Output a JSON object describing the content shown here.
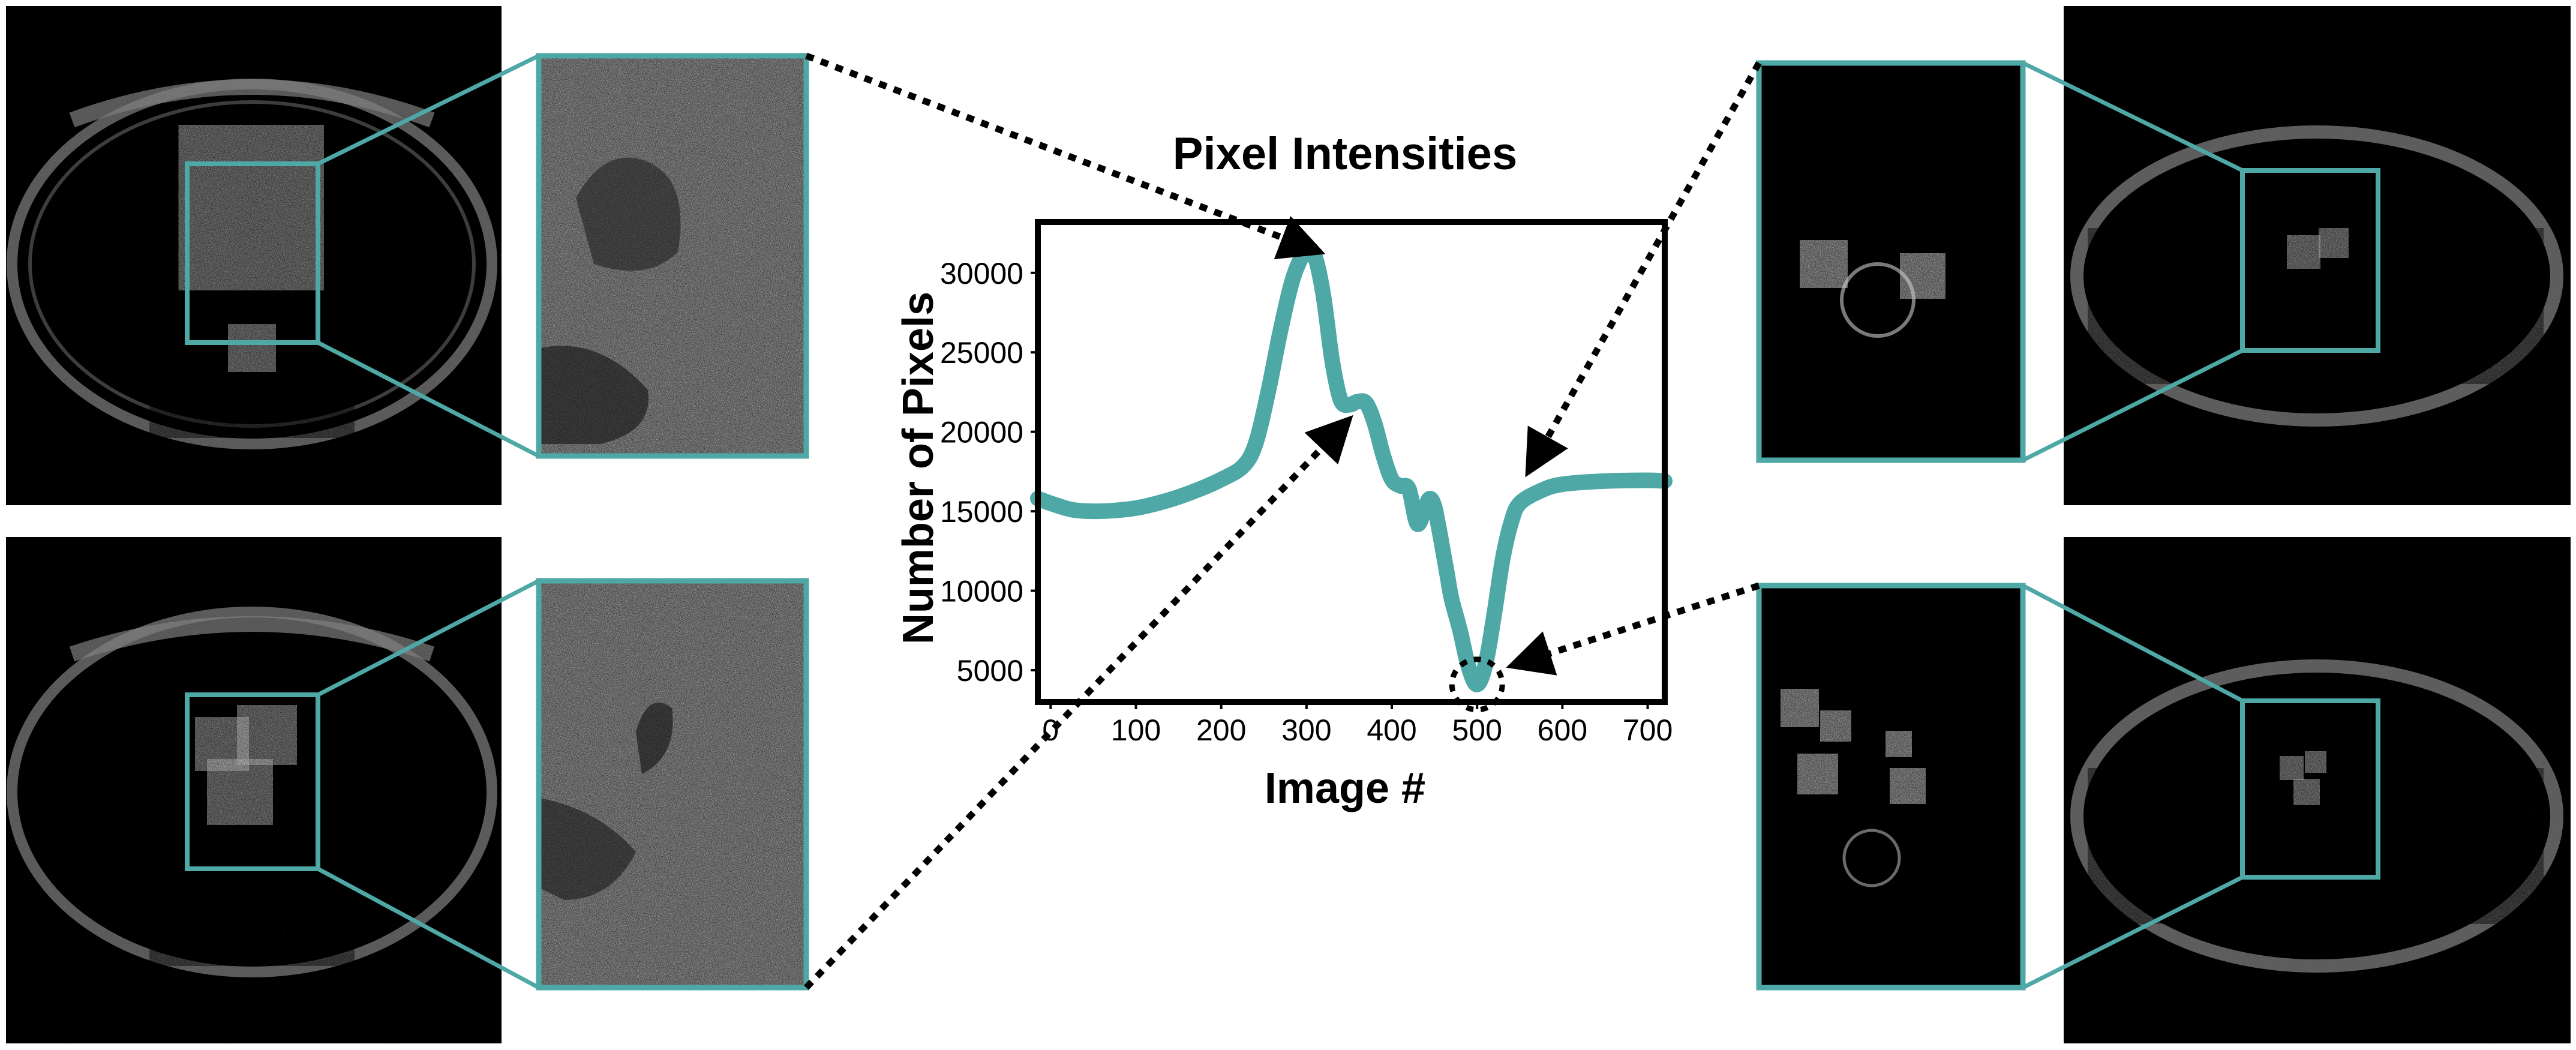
{
  "chart_data": {
    "type": "line",
    "title": "Pixel Intensities",
    "xlabel": "Image #",
    "ylabel": "Number of Pixels",
    "xlim": [
      -15,
      720
    ],
    "ylim": [
      3000,
      33200
    ],
    "xticks": [
      0,
      100,
      200,
      300,
      400,
      500,
      600,
      700
    ],
    "yticks": [
      5000,
      10000,
      15000,
      20000,
      25000,
      30000
    ],
    "grid": false,
    "legend": "none",
    "series": [
      {
        "color": "#4ea8a6",
        "x": [
          -15,
          0,
          25,
          50,
          75,
          100,
          125,
          150,
          175,
          200,
          225,
          240,
          255,
          270,
          285,
          300,
          310,
          320,
          330,
          340,
          350,
          360,
          370,
          380,
          390,
          400,
          410,
          420,
          430,
          440,
          445,
          450,
          455,
          460,
          465,
          470,
          480,
          490,
          500,
          510,
          520,
          530,
          540,
          550,
          575,
          600,
          650,
          700,
          720
        ],
        "y": [
          15800,
          15500,
          15100,
          15000,
          15050,
          15200,
          15500,
          15900,
          16400,
          17000,
          17800,
          19200,
          22500,
          26500,
          29800,
          31400,
          31000,
          28500,
          24500,
          22000,
          21700,
          21900,
          21800,
          20500,
          18500,
          17000,
          16600,
          16400,
          14200,
          15400,
          15800,
          15300,
          14000,
          12500,
          11000,
          9500,
          7500,
          5200,
          4100,
          5400,
          8500,
          12000,
          14300,
          15500,
          16300,
          16700,
          16900,
          16950,
          16900
        ]
      }
    ],
    "marked_point": {
      "x": 500,
      "y": 4100
    }
  },
  "colors": {
    "accent": "#4ea8a6",
    "panel_background": "#000000",
    "arrow": "#000000"
  },
  "panels": [
    {
      "position": "top-left",
      "view": "axial-ct-slice"
    },
    {
      "position": "bottom-left",
      "view": "axial-ct-slice"
    },
    {
      "position": "top-right",
      "view": "axial-ct-slice"
    },
    {
      "position": "bottom-right",
      "view": "axial-ct-slice"
    }
  ]
}
